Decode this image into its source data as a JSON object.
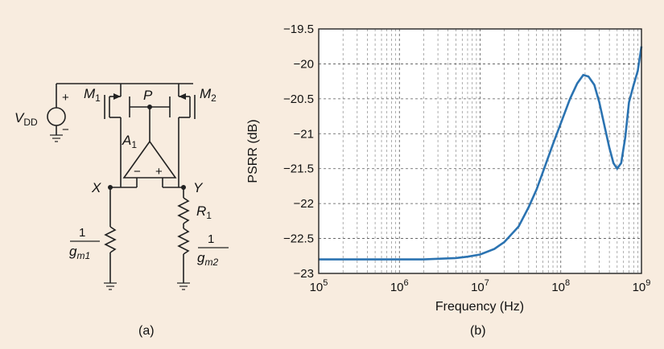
{
  "panel_a": {
    "caption": "(a)",
    "labels": {
      "vdd_main": "V",
      "vdd_sub": "DD",
      "plus": "+",
      "minus": "−",
      "m1_main": "M",
      "m1_sub": "1",
      "m2_main": "M",
      "m2_sub": "2",
      "p": "P",
      "a1_main": "A",
      "a1_sub": "1",
      "amp_minus": "−",
      "amp_plus": "+",
      "x": "X",
      "y": "Y",
      "r1_main": "R",
      "r1_sub": "1",
      "gm1_num": "1",
      "gm1_main": "g",
      "gm1_sub": "m1",
      "gm2_num": "1",
      "gm2_main": "g",
      "gm2_sub": "m2"
    }
  },
  "panel_b": {
    "caption": "(b)"
  },
  "chart_data": {
    "type": "line",
    "xlabel": "Frequency (Hz)",
    "ylabel": "PSRR (dB)",
    "xscale": "log",
    "xlim": [
      100000,
      1000000000
    ],
    "ylim": [
      -23,
      -19.5
    ],
    "grid": true,
    "x_tick_labels": [
      {
        "base": "10",
        "exp": "5"
      },
      {
        "base": "10",
        "exp": "6"
      },
      {
        "base": "10",
        "exp": "7"
      },
      {
        "base": "10",
        "exp": "8"
      },
      {
        "base": "10",
        "exp": "9"
      }
    ],
    "y_ticks": [
      -19.5,
      -20,
      -20.5,
      -21,
      -21.5,
      -22,
      -22.5,
      -23
    ],
    "y_tick_labels": [
      "−19.5",
      "−20",
      "−20.5",
      "−21",
      "−21.5",
      "−22",
      "−22.5",
      "−23"
    ],
    "series": [
      {
        "color": "#2b73b1",
        "x": [
          100000,
          1000000,
          2000000,
          3000000,
          5000000,
          7000000,
          10000000,
          15000000,
          20000000,
          30000000,
          40000000,
          50000000,
          60000000,
          80000000,
          100000000,
          130000000,
          160000000,
          190000000,
          220000000,
          260000000,
          300000000,
          350000000,
          400000000,
          450000000,
          500000000,
          560000000,
          630000000,
          700000000,
          800000000,
          900000000,
          1000000000
        ],
        "y": [
          -22.8,
          -22.8,
          -22.8,
          -22.79,
          -22.78,
          -22.76,
          -22.73,
          -22.65,
          -22.55,
          -22.33,
          -22.05,
          -21.8,
          -21.55,
          -21.15,
          -20.85,
          -20.5,
          -20.28,
          -20.16,
          -20.18,
          -20.3,
          -20.55,
          -20.9,
          -21.2,
          -21.42,
          -21.5,
          -21.42,
          -21.05,
          -20.55,
          -20.3,
          -20.1,
          -19.75
        ]
      }
    ]
  }
}
